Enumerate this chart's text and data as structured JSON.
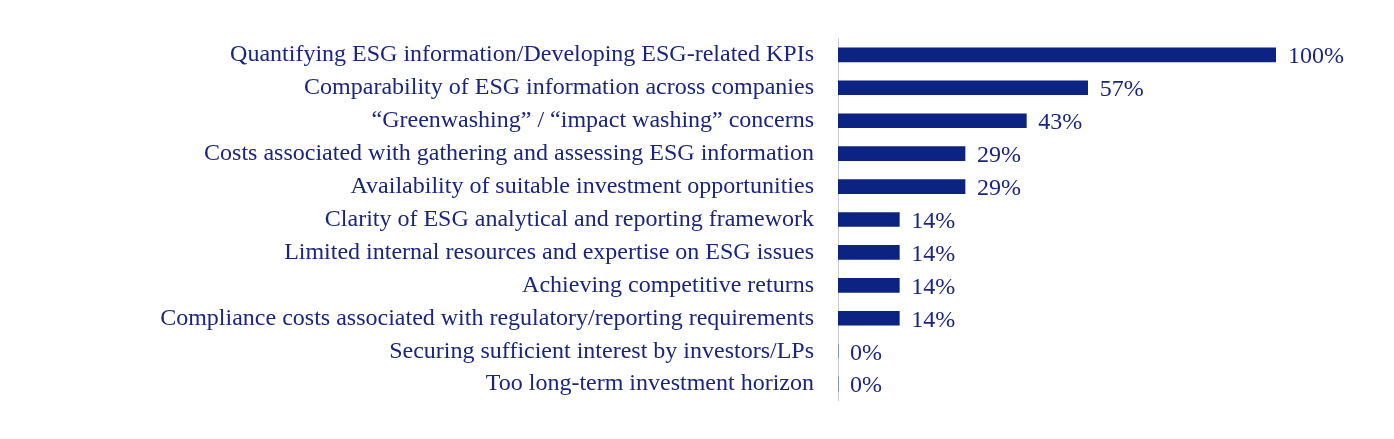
{
  "chart_data": {
    "type": "bar",
    "orientation": "horizontal",
    "color": "#0c2381",
    "categories": [
      "Quantifying ESG information/Developing ESG-related KPIs",
      "Comparability of ESG information across companies",
      "“Greenwashing” / “impact washing” concerns",
      "Costs associated with gathering and assessing ESG information",
      "Availability of suitable investment opportunities",
      "Clarity of ESG analytical and reporting framework",
      "Limited internal resources and expertise on ESG issues",
      "Achieving competitive returns",
      "Compliance costs associated with regulatory/reporting requirements",
      "Securing sufficient interest by investors/LPs",
      "Too long-term investment horizon"
    ],
    "values": [
      100,
      57,
      43,
      29,
      29,
      14,
      14,
      14,
      14,
      0,
      0
    ],
    "value_labels": [
      "100%",
      "57%",
      "43%",
      "29%",
      "29%",
      "14%",
      "14%",
      "14%",
      "14%",
      "0%",
      "0%"
    ]
  }
}
